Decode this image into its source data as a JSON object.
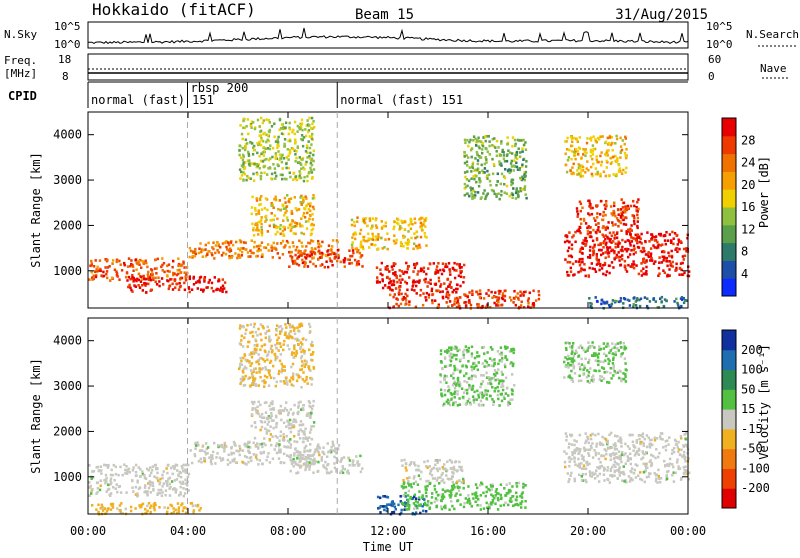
{
  "header": {
    "station": "Hokkaido (fitACF)",
    "beam": "Beam 15",
    "date": "31/Aug/2015"
  },
  "top_panels": {
    "nsky_label": "N.Sky",
    "nsky_ticks": [
      "10^5",
      "10^0"
    ],
    "nsearch_label": "N.Search",
    "nsearch_ticks": [
      "10^5",
      "10^0"
    ],
    "freq_label": "Freq.",
    "freq_unit": "[MHz]",
    "freq_ticks": [
      "18",
      "8"
    ],
    "nave_label": "Nave",
    "nave_ticks": [
      "60",
      "0"
    ],
    "cpid_label": "CPID",
    "cpid_segments": [
      {
        "label": "normal (fast) 151",
        "start": 0.0,
        "end": 3.98
      },
      {
        "label": "rbsp 200",
        "start": 3.98,
        "end": 9.97
      },
      {
        "label": "normal (fast) 151",
        "start": 9.97,
        "end": 24.0
      }
    ]
  },
  "axes": {
    "x_ticks": [
      "00:00",
      "04:00",
      "08:00",
      "12:00",
      "16:00",
      "20:00",
      "00:00"
    ],
    "x_label": "Time UT",
    "y_ticks": [
      "1000",
      "2000",
      "3000",
      "4000"
    ],
    "y_label": "Slant Range [km]"
  },
  "power_colorbar": {
    "label": "Power [dB]",
    "ticks": [
      "4",
      "8",
      "12",
      "16",
      "20",
      "24",
      "28"
    ],
    "colors": [
      "#0b2bff",
      "#1e4fa8",
      "#2e7a6a",
      "#5aa04a",
      "#8fc040",
      "#f0d000",
      "#f5a000",
      "#f07000",
      "#ee3a00",
      "#e80000"
    ]
  },
  "velocity_colorbar": {
    "label": "Velocity [m s⁻¹]",
    "ticks": [
      "200",
      "100",
      "50",
      "15",
      "-15",
      "-50",
      "-100",
      "-200"
    ],
    "colors": [
      "#1030a0",
      "#1f6fb0",
      "#2e8a55",
      "#52c040",
      "#c8c8c0",
      "#f0b020",
      "#f07a10",
      "#ee4000",
      "#e00000"
    ]
  },
  "chart_data": [
    {
      "type": "heatmap",
      "title": "Power",
      "xlabel": "Time UT",
      "ylabel": "Slant Range [km]",
      "xlim": [
        0,
        24
      ],
      "ylim": [
        180,
        4500
      ],
      "colorbar_label": "Power [dB]",
      "colorbar_range": [
        0,
        30
      ],
      "regions": [
        {
          "x": [
            0.0,
            4.0
          ],
          "y": [
            800,
            1300
          ],
          "value": 24
        },
        {
          "x": [
            1.5,
            5.5
          ],
          "y": [
            550,
            900
          ],
          "value": 28
        },
        {
          "x": [
            4.0,
            10.0
          ],
          "y": [
            1300,
            1700
          ],
          "value": 22
        },
        {
          "x": [
            6.5,
            9.0
          ],
          "y": [
            1800,
            2700
          ],
          "value": 18
        },
        {
          "x": [
            6.0,
            9.0
          ],
          "y": [
            3000,
            4400
          ],
          "value": 14
        },
        {
          "x": [
            8.0,
            11.0
          ],
          "y": [
            1100,
            1500
          ],
          "value": 26
        },
        {
          "x": [
            11.5,
            15.0
          ],
          "y": [
            600,
            1200
          ],
          "value": 28
        },
        {
          "x": [
            12.0,
            18.0
          ],
          "y": [
            200,
            600
          ],
          "value": 26
        },
        {
          "x": [
            10.5,
            13.5
          ],
          "y": [
            1500,
            2200
          ],
          "value": 18
        },
        {
          "x": [
            15.0,
            17.5
          ],
          "y": [
            2600,
            4000
          ],
          "value": 12
        },
        {
          "x": [
            19.0,
            24.0
          ],
          "y": [
            900,
            1900
          ],
          "value": 28
        },
        {
          "x": [
            19.5,
            22.0
          ],
          "y": [
            1900,
            2600
          ],
          "value": 26
        },
        {
          "x": [
            19.0,
            21.5
          ],
          "y": [
            3100,
            4000
          ],
          "value": 18
        },
        {
          "x": [
            20.0,
            24.0
          ],
          "y": [
            200,
            450
          ],
          "value": 6
        }
      ]
    },
    {
      "type": "heatmap",
      "title": "Velocity",
      "xlabel": "Time UT",
      "ylabel": "Slant Range [km]",
      "xlim": [
        0,
        24
      ],
      "ylim": [
        180,
        4500
      ],
      "colorbar_label": "Velocity [m s⁻¹]",
      "colorbar_range": [
        -200,
        200
      ],
      "regions": [
        {
          "x": [
            0.0,
            4.0
          ],
          "y": [
            600,
            1300
          ],
          "value": 0
        },
        {
          "x": [
            4.0,
            10.0
          ],
          "y": [
            1300,
            1800
          ],
          "value": 0
        },
        {
          "x": [
            6.5,
            9.0
          ],
          "y": [
            1800,
            2700
          ],
          "value": 0
        },
        {
          "x": [
            6.0,
            9.0
          ],
          "y": [
            3000,
            4400
          ],
          "value": -30
        },
        {
          "x": [
            8.0,
            11.0
          ],
          "y": [
            1100,
            1500
          ],
          "value": 0
        },
        {
          "x": [
            11.5,
            13.5
          ],
          "y": [
            200,
            600
          ],
          "value": 150
        },
        {
          "x": [
            12.5,
            17.5
          ],
          "y": [
            300,
            900
          ],
          "value": 40
        },
        {
          "x": [
            12.5,
            15.0
          ],
          "y": [
            900,
            1400
          ],
          "value": 0
        },
        {
          "x": [
            14.0,
            17.0
          ],
          "y": [
            2600,
            3900
          ],
          "value": 30
        },
        {
          "x": [
            19.0,
            24.0
          ],
          "y": [
            900,
            2000
          ],
          "value": 0
        },
        {
          "x": [
            19.0,
            21.5
          ],
          "y": [
            3100,
            4000
          ],
          "value": 30
        },
        {
          "x": [
            0.0,
            4.5
          ],
          "y": [
            200,
            450
          ],
          "value": -40
        }
      ]
    }
  ]
}
